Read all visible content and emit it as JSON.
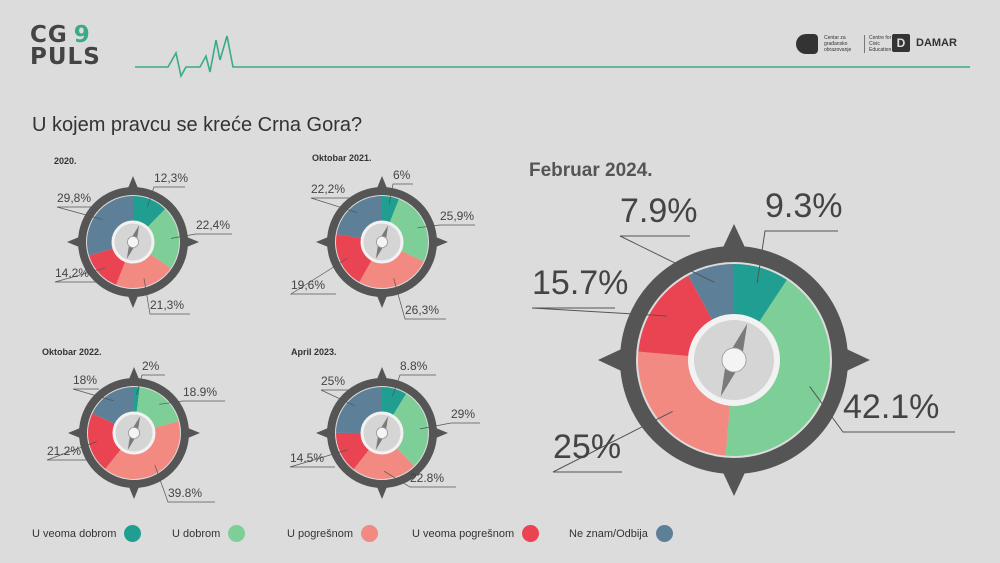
{
  "brand": {
    "line1": "CG",
    "num": "9",
    "line2": "PULS"
  },
  "partners": {
    "cgo_line1": "Centar za građansko obrazovanje",
    "cgo_line2": "Centre for Civic Education",
    "damar": "DAMAR",
    "damar_mark": "D"
  },
  "title": "U kojem pravcu se kreće Crna Gora?",
  "colors": {
    "u_veoma_dobrom": "#1f9e91",
    "u_dobrom": "#7ecf97",
    "u_pogresnom": "#f28a82",
    "u_veoma_pogresnom": "#ea4452",
    "ne_znam": "#5d7f97"
  },
  "legend": [
    {
      "label": "U veoma dobrom",
      "color": "#1f9e91"
    },
    {
      "label": "U dobrom",
      "color": "#7ecf97"
    },
    {
      "label": "U pogrešnom",
      "color": "#f28a82"
    },
    {
      "label": "U veoma pogrešnom",
      "color": "#ea4452"
    },
    {
      "label": "Ne znam/Odbija",
      "color": "#5d7f97"
    }
  ],
  "chart_data": [
    {
      "type": "pie",
      "title": "2020.",
      "categories": [
        "U veoma dobrom",
        "U dobrom",
        "U pogrešnom",
        "U veoma pogrešnom",
        "Ne znam/Odbija"
      ],
      "values": [
        12.3,
        22.4,
        21.3,
        14.2,
        29.8
      ],
      "labels": [
        "12,3%",
        "22,4%",
        "21,3%",
        "14,2%",
        "29,8%"
      ]
    },
    {
      "type": "pie",
      "title": "Oktobar 2021.",
      "categories": [
        "U veoma dobrom",
        "U dobrom",
        "U pogrešnom",
        "U veoma pogrešnom",
        "Ne znam/Odbija"
      ],
      "values": [
        6,
        25.9,
        26.3,
        19.6,
        22.2
      ],
      "labels": [
        "6%",
        "25,9%",
        "26,3%",
        "19,6%",
        "22,2%"
      ]
    },
    {
      "type": "pie",
      "title": "Oktobar 2022.",
      "categories": [
        "U veoma dobrom",
        "U dobrom",
        "U pogrešnom",
        "U veoma pogrešnom",
        "Ne znam/Odbija"
      ],
      "values": [
        2,
        18.9,
        39.8,
        21.2,
        18
      ],
      "labels": [
        "2%",
        "18.9%",
        "39.8%",
        "21.2%",
        "18%"
      ]
    },
    {
      "type": "pie",
      "title": "April 2023.",
      "categories": [
        "U veoma dobrom",
        "U dobrom",
        "U pogrešnom",
        "U veoma pogrešnom",
        "Ne znam/Odbija"
      ],
      "values": [
        8.8,
        29,
        22.8,
        14.5,
        25
      ],
      "labels": [
        "8.8%",
        "29%",
        "22.8%",
        "14.5%",
        "25%"
      ]
    },
    {
      "type": "pie",
      "title": "Februar 2024.",
      "categories": [
        "U veoma dobrom",
        "U dobrom",
        "U pogrešnom",
        "U veoma pogrešnom",
        "Ne znam/Odbija"
      ],
      "values": [
        9.3,
        42.1,
        25,
        15.7,
        7.9
      ],
      "labels": [
        "9.3%",
        "42.1%",
        "25%",
        "15.7%",
        "7.9%"
      ]
    }
  ]
}
